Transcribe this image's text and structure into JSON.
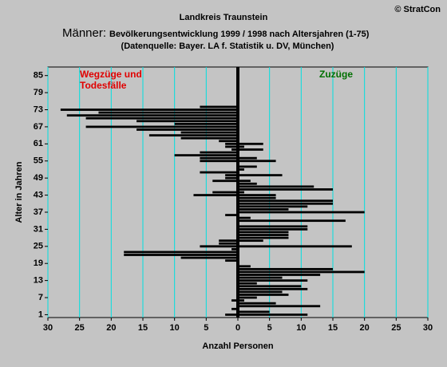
{
  "chart_data": {
    "type": "bar",
    "orientation": "horizontal",
    "title": "Landkreis Traunstein",
    "subtitle": [
      "Männer:",
      "Bevölkerungsentwicklung 1999 / 1998  nach Altersjahren (1-75)"
    ],
    "source": "(Datenquelle: Bayer. LA f. Statistik u. DV, München)",
    "copyright": "© StratCon",
    "x_label": "Anzahl Personen",
    "y_label": "Alter in Jahren",
    "y": [
      1,
      2,
      3,
      4,
      5,
      6,
      7,
      8,
      9,
      10,
      11,
      12,
      13,
      14,
      15,
      16,
      17,
      18,
      19,
      20,
      21,
      22,
      23,
      24,
      25,
      26,
      27,
      28,
      29,
      30,
      31,
      32,
      33,
      34,
      35,
      36,
      37,
      38,
      39,
      40,
      41,
      42,
      43,
      44,
      45,
      46,
      47,
      48,
      49,
      50,
      51,
      52,
      53,
      54,
      55,
      56,
      57,
      58,
      59,
      60,
      61,
      62,
      63,
      64,
      65,
      66,
      67,
      68,
      69,
      70,
      71,
      72,
      73,
      74,
      75
    ],
    "series": [
      {
        "name": "Wegzüge und Todesfälle",
        "color": "#000000",
        "label_color": "#e00000",
        "values": [
          -2,
          0,
          -1,
          0,
          0,
          -1,
          0,
          0,
          0,
          0,
          0,
          0,
          0,
          0,
          0,
          0,
          0,
          0,
          0,
          -2,
          -9,
          -18,
          -18,
          -1,
          -6,
          -3,
          -3,
          0,
          0,
          0,
          0,
          0,
          0,
          0,
          0,
          -2,
          0,
          0,
          0,
          0,
          0,
          0,
          -7,
          -4,
          0,
          0,
          0,
          -4,
          -2,
          -2,
          -6,
          0,
          0,
          0,
          -6,
          -6,
          -10,
          -6,
          -1,
          -2,
          -2,
          -3,
          -9,
          -14,
          -9,
          -16,
          -24,
          -10,
          -16,
          -24,
          -27,
          -22,
          -28,
          -6,
          0
        ]
      },
      {
        "name": "Zuzüge",
        "color": "#000000",
        "label_color": "#007000",
        "values": [
          11,
          5,
          0,
          13,
          6,
          1,
          3,
          8,
          7,
          11,
          10,
          3,
          11,
          7,
          13,
          20,
          15,
          2,
          0,
          0,
          0,
          0,
          0,
          0,
          18,
          0,
          4,
          8,
          8,
          8,
          11,
          11,
          0,
          17,
          2,
          0,
          20,
          8,
          11,
          15,
          15,
          6,
          6,
          1,
          15,
          12,
          3,
          2,
          0,
          7,
          0,
          1,
          3,
          0,
          6,
          3,
          0,
          0,
          4,
          1,
          4,
          0,
          0,
          0,
          0,
          0,
          0,
          0,
          0,
          0,
          0,
          0,
          0,
          0,
          0
        ]
      }
    ],
    "xlim": [
      -30,
      30
    ],
    "xticks": [
      {
        "value": -30,
        "label": "30"
      },
      {
        "value": -25,
        "label": "25"
      },
      {
        "value": -20,
        "label": "20"
      },
      {
        "value": -15,
        "label": "15"
      },
      {
        "value": -10,
        "label": "10"
      },
      {
        "value": -5,
        "label": "5"
      },
      0,
      5,
      10,
      15,
      20,
      25,
      30
    ],
    "ylim": [
      0,
      88
    ],
    "yticks": [
      1,
      7,
      13,
      19,
      25,
      31,
      37,
      43,
      49,
      55,
      61,
      67,
      73,
      79,
      85
    ],
    "grid": true,
    "grid_color": "#00e0e0"
  }
}
